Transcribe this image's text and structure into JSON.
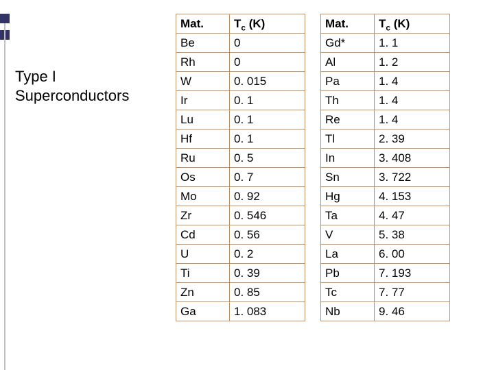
{
  "title_line1": "Type I",
  "title_line2": "Superconductors",
  "header_mat": "Mat.",
  "header_tc_prefix": "T",
  "header_tc_sub": "c",
  "header_tc_suffix": " (K)",
  "border_color": "#c09060",
  "text_color": "#000000",
  "table1": {
    "rows": [
      {
        "mat": "Be",
        "tc": "0"
      },
      {
        "mat": "Rh",
        "tc": "0"
      },
      {
        "mat": "W",
        "tc": "0. 015"
      },
      {
        "mat": "Ir",
        "tc": "0. 1"
      },
      {
        "mat": "Lu",
        "tc": "0. 1"
      },
      {
        "mat": "Hf",
        "tc": "0. 1"
      },
      {
        "mat": "Ru",
        "tc": "0. 5"
      },
      {
        "mat": "Os",
        "tc": "0. 7"
      },
      {
        "mat": "Mo",
        "tc": "0. 92"
      },
      {
        "mat": "Zr",
        "tc": "0. 546"
      },
      {
        "mat": "Cd",
        "tc": "0. 56"
      },
      {
        "mat": "U",
        "tc": "0. 2"
      },
      {
        "mat": "Ti",
        "tc": "0. 39"
      },
      {
        "mat": "Zn",
        "tc": "0. 85"
      },
      {
        "mat": "Ga",
        "tc": "1. 083"
      }
    ]
  },
  "table2": {
    "rows": [
      {
        "mat": "Gd*",
        "tc": "1. 1"
      },
      {
        "mat": "Al",
        "tc": "1. 2"
      },
      {
        "mat": "Pa",
        "tc": "1. 4"
      },
      {
        "mat": "Th",
        "tc": "1. 4"
      },
      {
        "mat": "Re",
        "tc": "1. 4"
      },
      {
        "mat": "Tl",
        "tc": "2. 39"
      },
      {
        "mat": "In",
        "tc": "3. 408"
      },
      {
        "mat": "Sn",
        "tc": "3. 722"
      },
      {
        "mat": "Hg",
        "tc": "4. 153"
      },
      {
        "mat": "Ta",
        "tc": "4. 47"
      },
      {
        "mat": "V",
        "tc": "5. 38"
      },
      {
        "mat": "La",
        "tc": "6. 00"
      },
      {
        "mat": "Pb",
        "tc": "7. 193"
      },
      {
        "mat": "Tc",
        "tc": "7. 77"
      },
      {
        "mat": "Nb",
        "tc": "9. 46"
      }
    ]
  }
}
